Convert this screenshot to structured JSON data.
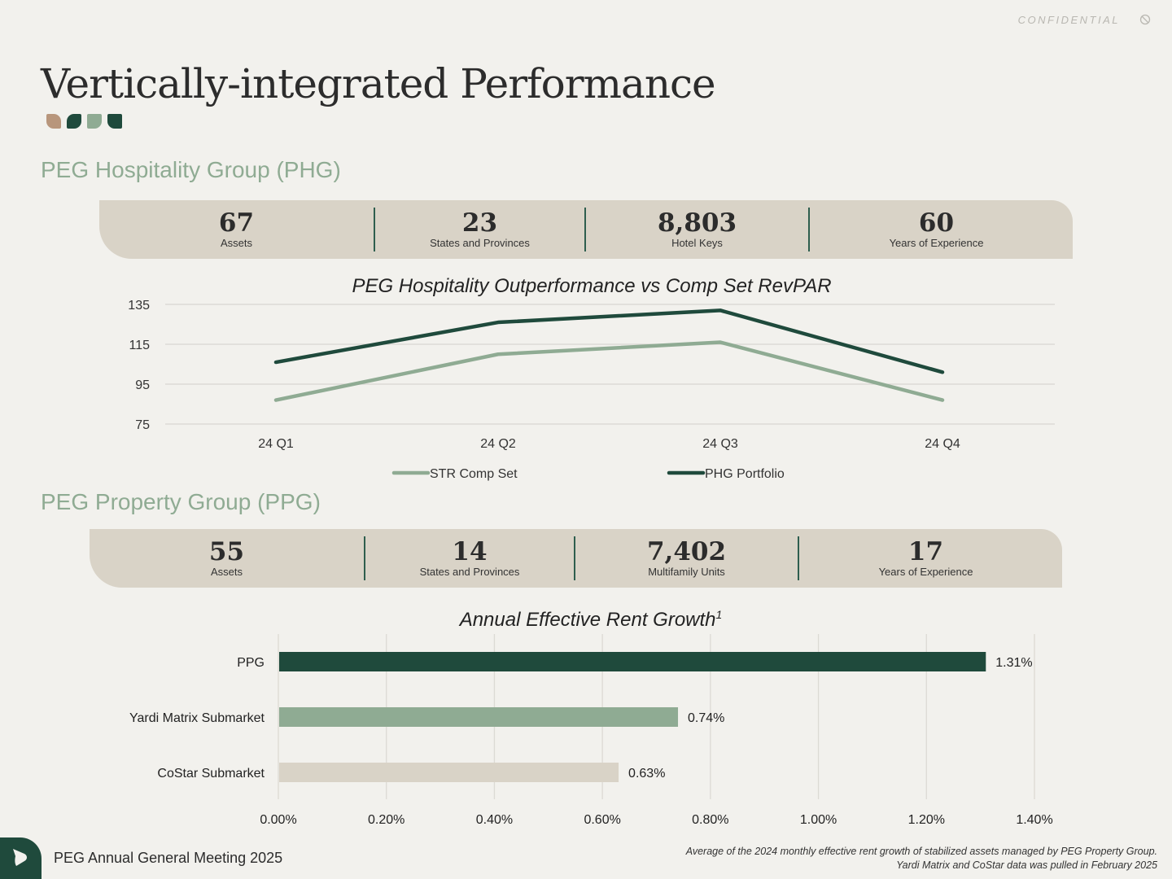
{
  "header": {
    "confidential": "CONFIDENTIAL",
    "title": "Vertically-integrated Performance"
  },
  "colors": {
    "dark_green": "#1f4a3c",
    "sage": "#8fab93",
    "tan": "#d9d3c7",
    "copper": "#b8967c",
    "background": "#f2f1ed"
  },
  "phg": {
    "section_title": "PEG Hospitality Group (PHG)",
    "stats": [
      {
        "value": "67",
        "label": "Assets"
      },
      {
        "value": "23",
        "label": "States and Provinces"
      },
      {
        "value": "8,803",
        "label": "Hotel Keys"
      },
      {
        "value": "60",
        "label": "Years of Experience"
      }
    ]
  },
  "ppg": {
    "section_title": "PEG Property Group (PPG)",
    "stats": [
      {
        "value": "55",
        "label": "Assets"
      },
      {
        "value": "14",
        "label": "States and Provinces"
      },
      {
        "value": "7,402",
        "label": "Multifamily Units"
      },
      {
        "value": "17",
        "label": "Years of Experience"
      }
    ]
  },
  "chart_data": [
    {
      "type": "line",
      "title": "PEG Hospitality Outperformance vs Comp Set RevPAR",
      "categories": [
        "24 Q1",
        "24 Q2",
        "24 Q3",
        "24 Q4"
      ],
      "yticks": [
        75,
        95,
        115,
        135
      ],
      "ylim": [
        75,
        135
      ],
      "xlabel": "",
      "ylabel": "",
      "series": [
        {
          "name": "STR Comp Set",
          "values": [
            87,
            110,
            116,
            87
          ],
          "color": "#8fab93"
        },
        {
          "name": "PHG Portfolio",
          "values": [
            106,
            126,
            132,
            101
          ],
          "color": "#1f4a3c"
        }
      ],
      "legend": "bottom"
    },
    {
      "type": "bar",
      "orientation": "horizontal",
      "title": "Annual Effective Rent Growth",
      "title_sup": "1",
      "categories": [
        "PPG",
        "Yardi Matrix Submarket",
        "CoStar Submarket"
      ],
      "values": [
        1.31,
        0.74,
        0.63
      ],
      "value_labels": [
        "1.31%",
        "0.74%",
        "0.63%"
      ],
      "colors": [
        "#1f4a3c",
        "#8fab93",
        "#d9d3c7"
      ],
      "xticks": [
        "0.00%",
        "0.20%",
        "0.40%",
        "0.60%",
        "0.80%",
        "1.00%",
        "1.20%",
        "1.40%"
      ],
      "xlim": [
        0,
        1.4
      ],
      "xlabel": "",
      "ylabel": ""
    }
  ],
  "footer": {
    "meeting": "PEG Annual General Meeting 2025",
    "footnote_line1": "Average of the 2024 monthly effective rent growth of stabilized assets managed by PEG Property Group.",
    "footnote_line2": "Yardi Matrix and CoStar data was pulled in February 2025"
  }
}
